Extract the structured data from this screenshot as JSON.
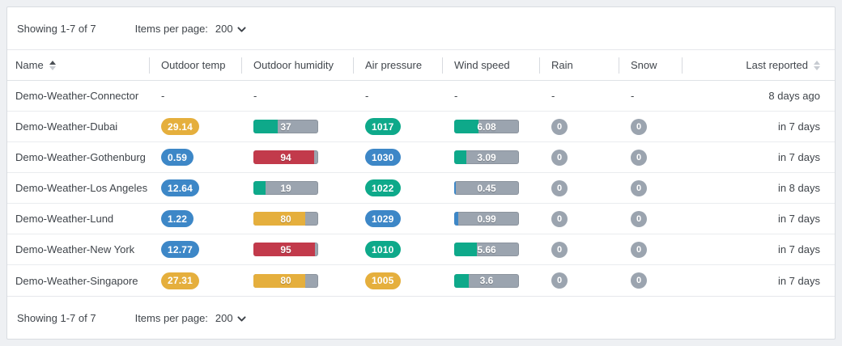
{
  "pagination": {
    "showing": "Showing 1-7 of 7",
    "items_per_page_label": "Items per page:",
    "items_per_page_value": "200"
  },
  "table": {
    "columns": [
      {
        "key": "name",
        "label": "Name",
        "sort": "asc"
      },
      {
        "key": "temp",
        "label": "Outdoor temp",
        "sort": null
      },
      {
        "key": "humidity",
        "label": "Outdoor humidity",
        "sort": null
      },
      {
        "key": "pressure",
        "label": "Air pressure",
        "sort": null
      },
      {
        "key": "wind",
        "label": "Wind speed",
        "sort": null
      },
      {
        "key": "rain",
        "label": "Rain",
        "sort": null
      },
      {
        "key": "snow",
        "label": "Snow",
        "sort": null
      },
      {
        "key": "last",
        "label": "Last reported",
        "sort": "none"
      }
    ],
    "rows": [
      {
        "name": "Demo-Weather-Connector",
        "temp": {
          "text": "-"
        },
        "humidity": {
          "text": "-"
        },
        "pressure": {
          "text": "-"
        },
        "wind": {
          "text": "-"
        },
        "rain": {
          "text": "-"
        },
        "snow": {
          "text": "-"
        },
        "last": "8 days ago"
      },
      {
        "name": "Demo-Weather-Dubai",
        "temp": {
          "value": "29.14",
          "color": "amber"
        },
        "humidity": {
          "value": "37",
          "pct": 37,
          "color": "green"
        },
        "pressure": {
          "value": "1017",
          "color": "green"
        },
        "wind": {
          "value": "6.08",
          "pct": 38,
          "color": "green"
        },
        "rain": {
          "value": "0"
        },
        "snow": {
          "value": "0"
        },
        "last": "in 7 days"
      },
      {
        "name": "Demo-Weather-Gothenburg",
        "temp": {
          "value": "0.59",
          "color": "blue"
        },
        "humidity": {
          "value": "94",
          "pct": 94,
          "color": "red"
        },
        "pressure": {
          "value": "1030",
          "color": "blue"
        },
        "wind": {
          "value": "3.09",
          "pct": 19,
          "color": "green"
        },
        "rain": {
          "value": "0"
        },
        "snow": {
          "value": "0"
        },
        "last": "in 7 days"
      },
      {
        "name": "Demo-Weather-Los Angeles",
        "temp": {
          "value": "12.64",
          "color": "blue"
        },
        "humidity": {
          "value": "19",
          "pct": 19,
          "color": "green"
        },
        "pressure": {
          "value": "1022",
          "color": "green"
        },
        "wind": {
          "value": "0.45",
          "pct": 3,
          "color": "blue"
        },
        "rain": {
          "value": "0"
        },
        "snow": {
          "value": "0"
        },
        "last": "in 8 days"
      },
      {
        "name": "Demo-Weather-Lund",
        "temp": {
          "value": "1.22",
          "color": "blue"
        },
        "humidity": {
          "value": "80",
          "pct": 80,
          "color": "amber"
        },
        "pressure": {
          "value": "1029",
          "color": "blue"
        },
        "wind": {
          "value": "0.99",
          "pct": 6,
          "color": "blue"
        },
        "rain": {
          "value": "0"
        },
        "snow": {
          "value": "0"
        },
        "last": "in 7 days"
      },
      {
        "name": "Demo-Weather-New York",
        "temp": {
          "value": "12.77",
          "color": "blue"
        },
        "humidity": {
          "value": "95",
          "pct": 95,
          "color": "red"
        },
        "pressure": {
          "value": "1010",
          "color": "green"
        },
        "wind": {
          "value": "5.66",
          "pct": 35,
          "color": "green"
        },
        "rain": {
          "value": "0"
        },
        "snow": {
          "value": "0"
        },
        "last": "in 7 days"
      },
      {
        "name": "Demo-Weather-Singapore",
        "temp": {
          "value": "27.31",
          "color": "amber"
        },
        "humidity": {
          "value": "80",
          "pct": 80,
          "color": "amber"
        },
        "pressure": {
          "value": "1005",
          "color": "amber"
        },
        "wind": {
          "value": "3.6",
          "pct": 22,
          "color": "green"
        },
        "rain": {
          "value": "0"
        },
        "snow": {
          "value": "0"
        },
        "last": "in 7 days"
      }
    ]
  },
  "colors": {
    "amber": "#e5af3d",
    "green": "#0ea98a",
    "blue": "#3d87c7",
    "red": "#c23a4b",
    "gray": "#9ba4af"
  }
}
